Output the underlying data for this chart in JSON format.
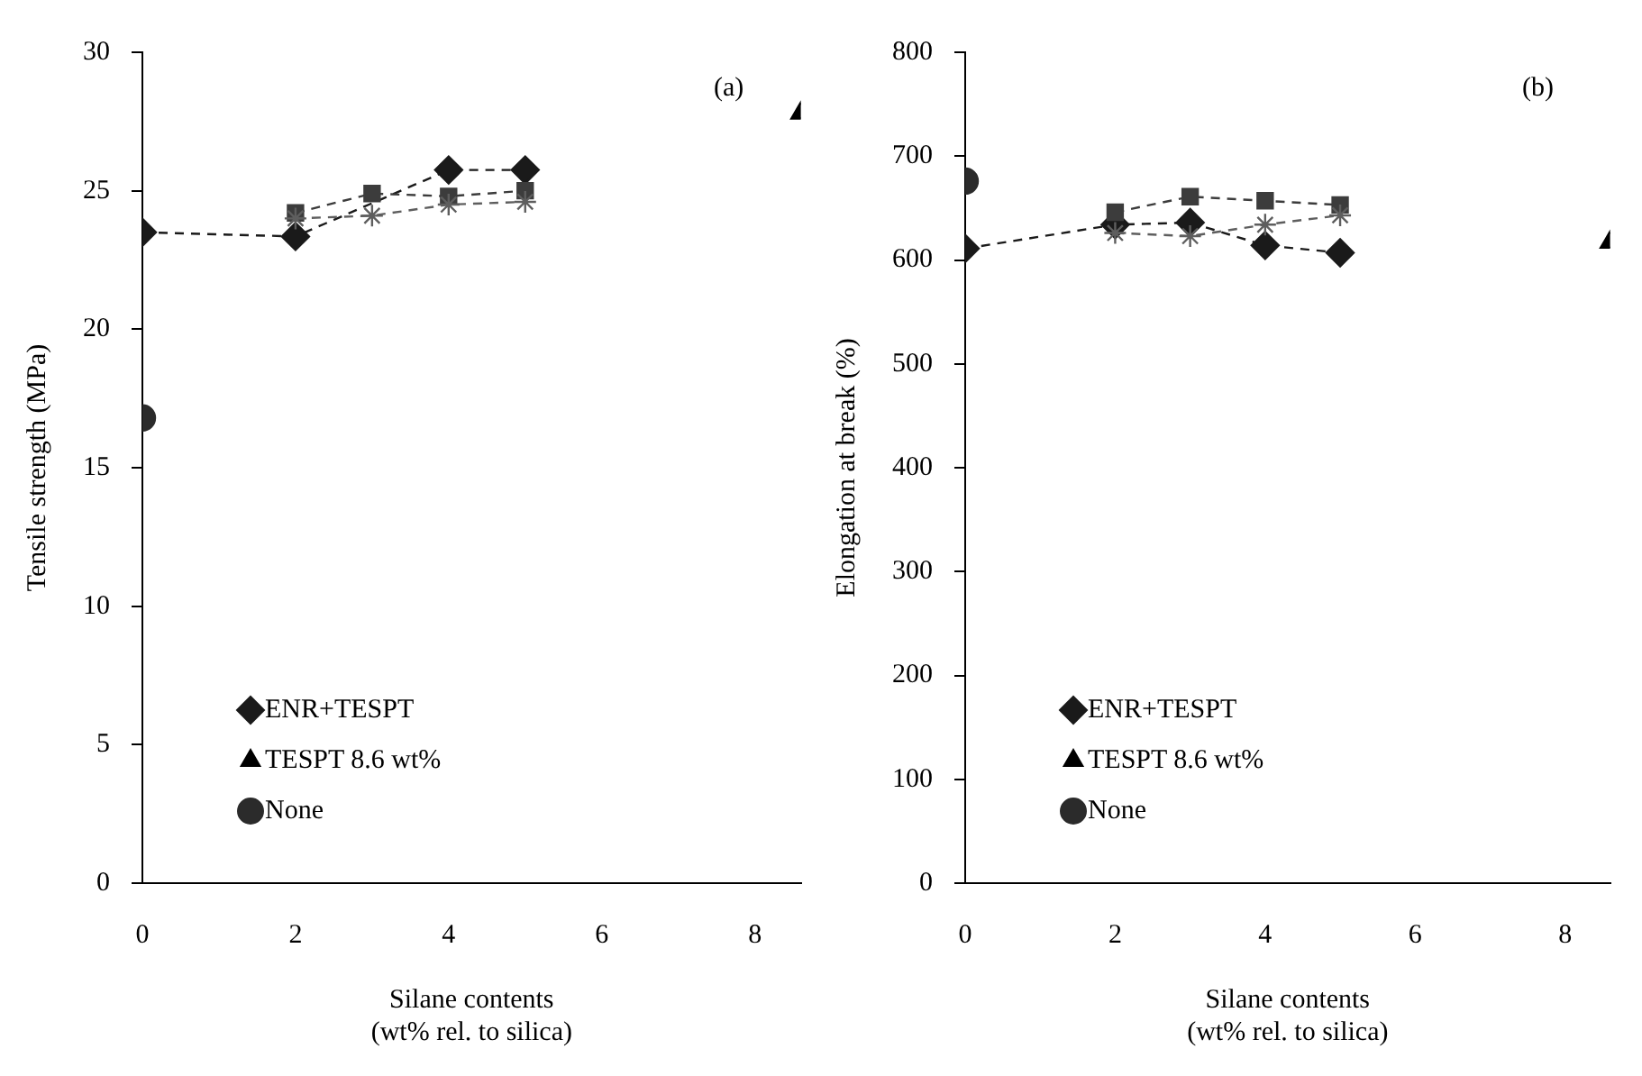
{
  "chart_data": [
    {
      "type": "scatter",
      "annotations": [
        "(a)"
      ],
      "xlabel": "Silane contents\n(wt% rel. to silica)",
      "ylabel": "Tensile strength (MPa)",
      "xlim": [
        0,
        8.6
      ],
      "xticks": [
        0,
        2,
        4,
        6,
        8
      ],
      "ylim": [
        0,
        30
      ],
      "yticks": [
        0,
        5,
        10,
        15,
        20,
        25,
        30
      ],
      "grid": false,
      "legend": "bottom left",
      "series": [
        {
          "name": "ENR+TESPT",
          "type": "line",
          "color": "#1a1a1a",
          "marker": "diamond",
          "line_style": "dashed",
          "x": [
            0,
            2,
            3,
            4,
            5
          ],
          "values": [
            23.5,
            23.35,
            null,
            25.75,
            25.75
          ]
        },
        {
          "type": "line",
          "color": "#3c3c3c",
          "marker": "square",
          "line_style": "dashed",
          "x": [
            2,
            3,
            4,
            5
          ],
          "values": [
            24.2,
            24.9,
            24.8,
            25.0
          ]
        },
        {
          "type": "line",
          "color": "#5e5e5e",
          "marker": "cross",
          "line_style": "dashed",
          "x": [
            2,
            3,
            4,
            5
          ],
          "values": [
            24.0,
            24.1,
            24.5,
            24.6
          ]
        },
        {
          "name": "TESPT 8.6 wt%",
          "color": "#000000",
          "marker": "triangle",
          "x": [
            8.6
          ],
          "values": [
            27.8
          ]
        },
        {
          "name": "None",
          "color": "#2b2b2b",
          "marker": "circle",
          "x": [
            0
          ],
          "values": [
            16.8
          ]
        }
      ]
    },
    {
      "type": "scatter",
      "annotations": [
        "(b)"
      ],
      "xlabel": "Silane contents\n(wt% rel. to silica)",
      "ylabel": "Elongation at break (%)",
      "xlim": [
        0,
        8.6
      ],
      "xticks": [
        0,
        2,
        4,
        6,
        8
      ],
      "ylim": [
        0,
        800
      ],
      "yticks": [
        0,
        100,
        200,
        300,
        400,
        500,
        600,
        700,
        800
      ],
      "grid": false,
      "legend": "bottom left",
      "series": [
        {
          "name": "ENR+TESPT",
          "type": "line",
          "color": "#1a1a1a",
          "marker": "diamond",
          "line_style": "dashed",
          "x": [
            0,
            2,
            3,
            4,
            5
          ],
          "values": [
            611,
            634,
            636,
            614,
            607
          ]
        },
        {
          "type": "line",
          "color": "#3c3c3c",
          "marker": "square",
          "line_style": "dashed",
          "x": [
            2,
            3,
            4,
            5
          ],
          "values": [
            646,
            661,
            657,
            653
          ]
        },
        {
          "type": "line",
          "color": "#5e5e5e",
          "marker": "cross",
          "line_style": "dashed",
          "x": [
            2,
            3,
            4,
            5
          ],
          "values": [
            626,
            623,
            634,
            643
          ]
        },
        {
          "name": "TESPT 8.6 wt%",
          "color": "#000000",
          "marker": "triangle",
          "x": [
            8.6
          ],
          "values": [
            617
          ]
        },
        {
          "name": "None",
          "color": "#2b2b2b",
          "marker": "circle",
          "x": [
            0
          ],
          "values": [
            676
          ]
        }
      ]
    }
  ]
}
